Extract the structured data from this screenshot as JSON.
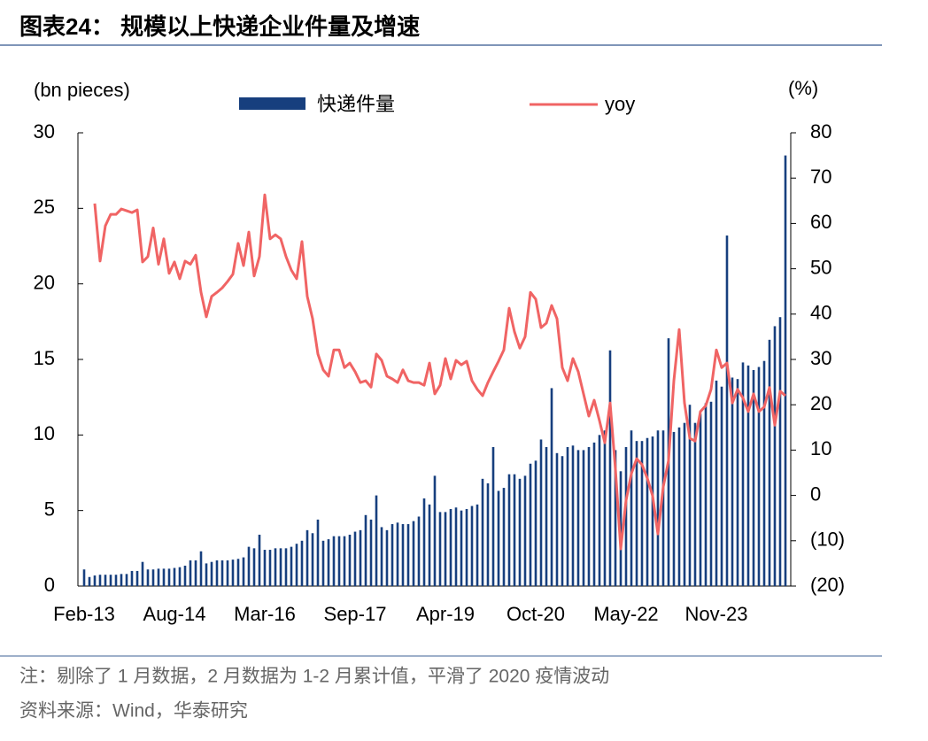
{
  "chart_data": {
    "type": "bar_line",
    "title": "图表24： 规模以上快递企业件量及增速",
    "y_label": "(bn pieces)",
    "y2_label": "(%)",
    "note": "注：剔除了 1 月数据，2 月数据为 1-2 月累计值，平滑了 2020 疫情波动",
    "source": "资料来源：Wind，华泰研究",
    "categories": [
      "Feb-13",
      null,
      null,
      null,
      null,
      null,
      null,
      null,
      null,
      null,
      null,
      null,
      null,
      null,
      null,
      null,
      null,
      "Aug-14",
      null,
      null,
      null,
      null,
      null,
      null,
      null,
      null,
      null,
      null,
      null,
      null,
      null,
      null,
      null,
      null,
      "Mar-16",
      null,
      null,
      null,
      null,
      null,
      null,
      null,
      null,
      null,
      null,
      null,
      null,
      null,
      null,
      null,
      null,
      "Sep-17",
      null,
      null,
      null,
      null,
      null,
      null,
      null,
      null,
      null,
      null,
      null,
      null,
      null,
      null,
      null,
      null,
      "Apr-19",
      null,
      null,
      null,
      null,
      null,
      null,
      null,
      null,
      null,
      null,
      null,
      null,
      null,
      null,
      null,
      null,
      "Oct-20",
      null,
      null,
      null,
      null,
      null,
      null,
      null,
      null,
      null,
      null,
      null,
      null,
      null,
      null,
      null,
      null,
      "May-22",
      null,
      null,
      null,
      null,
      null,
      null,
      null,
      null,
      null,
      null,
      null,
      null,
      null,
      null,
      null,
      null,
      "Nov-23",
      null,
      null,
      null,
      null,
      null,
      null,
      null,
      null,
      null,
      null,
      null,
      null,
      null
    ],
    "series": [
      {
        "name": "快递件量",
        "color": "#173f7e",
        "type": "bar",
        "axis": "y",
        "values": [
          1.1,
          0.6,
          0.7,
          0.75,
          0.75,
          0.75,
          0.75,
          0.8,
          0.8,
          1.0,
          1.0,
          1.6,
          1.1,
          1.1,
          1.15,
          1.15,
          1.15,
          1.2,
          1.25,
          1.35,
          1.7,
          1.7,
          2.3,
          1.5,
          1.6,
          1.7,
          1.7,
          1.7,
          1.75,
          1.8,
          1.9,
          2.6,
          2.5,
          3.4,
          2.4,
          2.4,
          2.5,
          2.5,
          2.5,
          2.6,
          2.8,
          3.0,
          3.7,
          3.5,
          4.4,
          3.0,
          3.1,
          3.3,
          3.3,
          3.3,
          3.4,
          3.6,
          3.7,
          4.7,
          4.4,
          6.0,
          3.9,
          3.7,
          4.1,
          4.2,
          4.1,
          4.1,
          4.3,
          4.6,
          5.8,
          5.4,
          7.3,
          4.9,
          4.9,
          5.1,
          5.2,
          5.0,
          5.1,
          5.3,
          5.4,
          7.1,
          6.8,
          9.2,
          6.3,
          6.5,
          7.4,
          7.4,
          7.1,
          7.3,
          8.1,
          8.3,
          9.7,
          9.2,
          13.1,
          8.8,
          8.6,
          9.2,
          9.3,
          9.0,
          9.0,
          9.2,
          9.5,
          10.0,
          10.3,
          15.6,
          9.0,
          7.6,
          9.2,
          10.3,
          9.6,
          9.6,
          9.8,
          9.9,
          10.3,
          10.3,
          16.4,
          10.2,
          10.5,
          10.8,
          12.0,
          10.8,
          11.4,
          12.1,
          12.2,
          13.6,
          13.2,
          23.2,
          13.8,
          13.7,
          14.8,
          14.6,
          14.3,
          14.5,
          14.9,
          16.3,
          17.2,
          17.8,
          28.5
        ]
      },
      {
        "name": "yoy",
        "color": "#f06464",
        "type": "line",
        "axis": "y2",
        "values": [
          null,
          null,
          64.4,
          51.7,
          59.5,
          62,
          62,
          63.2,
          62.8,
          62.4,
          63,
          51.5,
          52.7,
          59,
          51,
          56.6,
          49,
          51.5,
          47.8,
          51.7,
          51,
          53,
          44.8,
          39.4,
          43.9,
          44.8,
          45.8,
          47.2,
          48.8,
          55.6,
          50.7,
          58.1,
          48.4,
          52.7,
          66.3,
          56.6,
          57.5,
          56.6,
          52.7,
          49.7,
          47.8,
          56,
          43.9,
          39,
          31.2,
          27.7,
          26.3,
          32.1,
          32.1,
          28.2,
          29.2,
          27.3,
          24.9,
          25.3,
          23.9,
          31.2,
          29.8,
          26.3,
          25.7,
          24.9,
          27.7,
          25.3,
          24.9,
          24.9,
          24.3,
          29.2,
          22.4,
          24.3,
          30.2,
          25.7,
          29.8,
          28.8,
          29.6,
          25.3,
          23.4,
          22,
          24.9,
          27.3,
          29.6,
          32.1,
          41.3,
          36.1,
          32.5,
          35,
          44.8,
          43.3,
          37,
          38,
          41.9,
          39,
          28.2,
          25.3,
          30.2,
          27.3,
          22.4,
          17.5,
          21,
          16.5,
          11.6,
          20.4,
          5.8,
          -11.8,
          -1.1,
          4.8,
          8.1,
          6.8,
          3.8,
          -0.1,
          -8.5,
          1.9,
          7.7,
          25.3,
          36.6,
          20.4,
          12.6,
          12,
          18.5,
          19.8,
          23.4,
          32.1,
          28.2,
          29.2,
          20.4,
          23.4,
          21.5,
          18.5,
          22.4,
          18.5,
          19.5,
          23.8,
          15.5,
          23,
          22
        ]
      }
    ],
    "ylim": [
      0,
      30
    ],
    "yticks": [
      0,
      5,
      10,
      15,
      20,
      25,
      30
    ],
    "y2lim": [
      -20,
      80
    ],
    "y2ticks": [
      {
        "value": -20,
        "label": "(20)"
      },
      {
        "value": -10,
        "label": "(10)"
      },
      0,
      10,
      20,
      30,
      40,
      50,
      60,
      70,
      80
    ],
    "grid": false
  }
}
